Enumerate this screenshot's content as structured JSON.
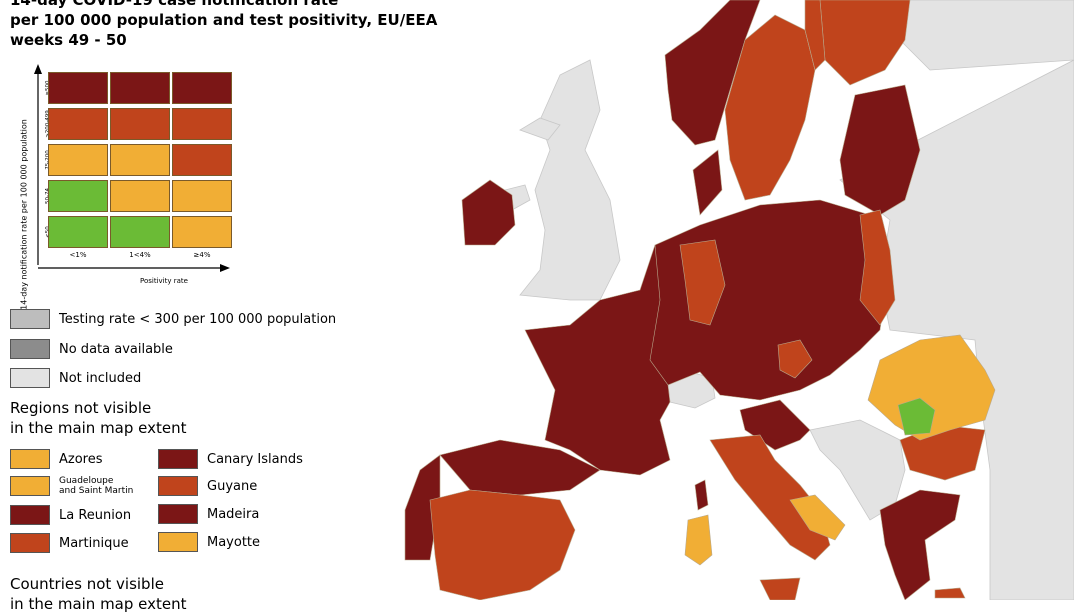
{
  "title": {
    "line1": "14-day COVID-19 case notification rate",
    "line2": "per 100 000 population and test positivity, EU/EEA",
    "line3": "weeks 49 - 50"
  },
  "matrix": {
    "y_axis_label": "14-day notification rate per 100 000 population",
    "x_axis_label": "Positivity rate",
    "row_labels": [
      "≥500",
      ">200-499",
      "75-200",
      "50-74",
      "<50"
    ],
    "col_labels": [
      "<1%",
      "1<4%",
      "≥4%"
    ],
    "cells": [
      [
        "#7b1616",
        "#7b1616",
        "#7b1616"
      ],
      [
        "#c0441c",
        "#c0441c",
        "#c0441c"
      ],
      [
        "#f1ae35",
        "#f1ae35",
        "#c0441c"
      ],
      [
        "#6bbb36",
        "#f1ae35",
        "#f1ae35"
      ],
      [
        "#6bbb36",
        "#6bbb36",
        "#f1ae35"
      ]
    ]
  },
  "legend": {
    "testing_rate": "Testing rate < 300 per 100 000 population",
    "no_data": "No data available",
    "not_included": "Not included",
    "regions_heading_1": "Regions not visible",
    "regions_heading_2": "in the main map extent",
    "regions": [
      {
        "name": "Azores",
        "color": "#f1ae35"
      },
      {
        "name": "Canary Islands",
        "color": "#7b1616"
      },
      {
        "name": "Guadeloupe",
        "name2": "and Saint Martin",
        "color": "#f1ae35"
      },
      {
        "name": "Guyane",
        "color": "#c0441c"
      },
      {
        "name": "La Reunion",
        "color": "#7b1616"
      },
      {
        "name": "Madeira",
        "color": "#7b1616"
      },
      {
        "name": "Martinique",
        "color": "#c0441c"
      },
      {
        "name": "Mayotte",
        "color": "#f1ae35"
      }
    ],
    "countries_heading_1": "Countries not visible",
    "countries_heading_2": "in the main map extent"
  },
  "colors": {
    "very_high": "#7b1616",
    "high": "#c0441c",
    "moderate": "#f1ae35",
    "low": "#6bbb36",
    "not_included": "#e3e3e3",
    "no_data": "#8c8c8c",
    "low_testing": "#bdbdbd"
  }
}
